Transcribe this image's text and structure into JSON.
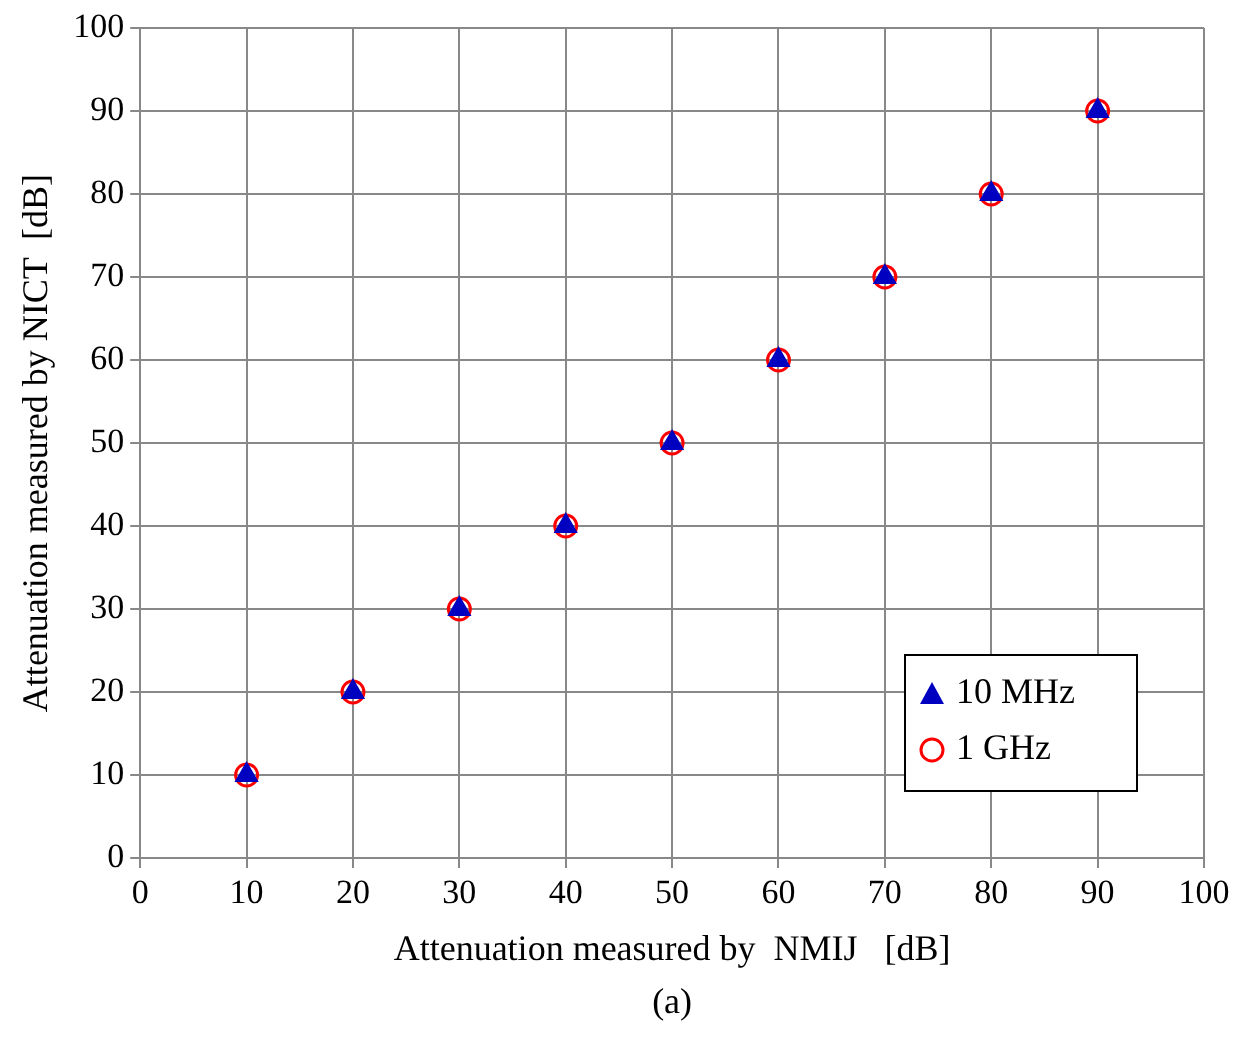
{
  "chart_data": {
    "type": "scatter",
    "xlabel": "Attenuation measured by  NMIJ   [dB]",
    "ylabel": "Attenuation measured by NICT  [dB]",
    "annotations": [
      "(a)"
    ],
    "x": [
      10,
      20,
      30,
      40,
      50,
      60,
      70,
      80,
      90
    ],
    "series": [
      {
        "name": "10 MHz",
        "color": "#0000c0",
        "marker": "triangle",
        "values": [
          10,
          20,
          30,
          40,
          50,
          60,
          70,
          80,
          90
        ]
      },
      {
        "name": "1 GHz",
        "color": "#ff0000",
        "marker": "circle",
        "values": [
          10,
          20,
          30,
          40,
          50,
          60,
          70,
          80,
          90
        ]
      }
    ],
    "xlim": [
      0,
      100
    ],
    "xticks": [
      0,
      10,
      20,
      30,
      40,
      50,
      60,
      70,
      80,
      90,
      100
    ],
    "ylim": [
      0,
      100
    ],
    "yticks": [
      0,
      10,
      20,
      30,
      40,
      50,
      60,
      70,
      80,
      90,
      100
    ],
    "grid": true,
    "legend": "bottom right"
  }
}
